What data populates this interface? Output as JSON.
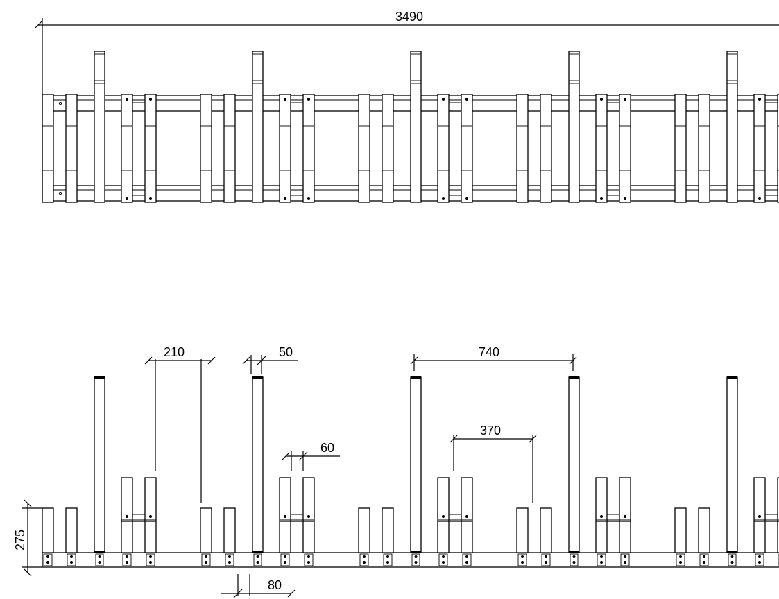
{
  "drawing": {
    "type": "technical-drawing",
    "views": [
      "top-view",
      "front-view"
    ],
    "line_color": "#000000",
    "background": "#ffffff"
  },
  "dimensions": {
    "overall_length": "3490",
    "post_spacing": "740",
    "slot_pitch": "370",
    "pair_gap": "210",
    "post_width": "50",
    "bar_width": "60",
    "foot_width": "80",
    "short_bar_height": "275"
  }
}
